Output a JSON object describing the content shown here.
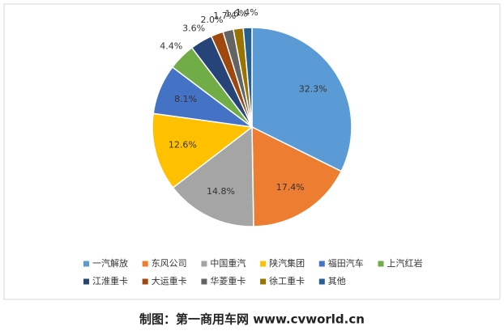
{
  "chart_data": {
    "type": "pie",
    "categories": [
      "一汽解放",
      "东风公司",
      "中国重汽",
      "陕汽集团",
      "福田汽车",
      "上汽红岩",
      "江淮重卡",
      "大运重卡",
      "华菱重卡",
      "徐工重卡",
      "其他"
    ],
    "values": [
      32.3,
      17.4,
      14.8,
      12.6,
      8.1,
      4.4,
      3.6,
      2.0,
      1.7,
      1.6,
      1.4
    ],
    "value_labels": [
      "32.3%",
      "17.4%",
      "14.8%",
      "12.6%",
      "8.1%",
      "4.4%",
      "3.6%",
      "2.0%",
      "1.7%",
      "1.6%",
      "1.4%"
    ],
    "colors": [
      "#5b9bd5",
      "#ed7d31",
      "#a5a5a5",
      "#ffc000",
      "#4472c4",
      "#70ad47",
      "#264478",
      "#9e480e",
      "#636363",
      "#997300",
      "#255e91"
    ],
    "credit": "制图：第一商用车网 www.cvworld.cn"
  }
}
